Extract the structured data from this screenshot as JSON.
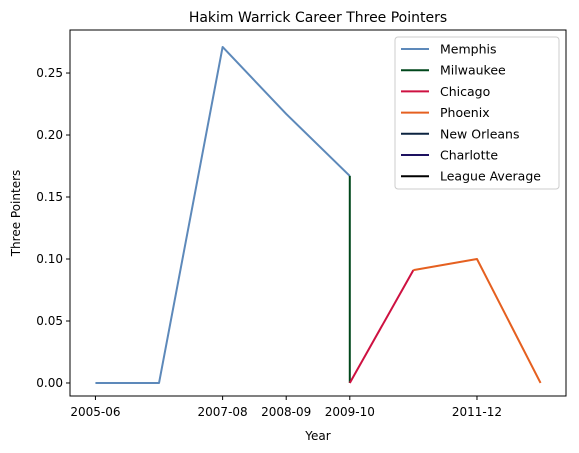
{
  "chart_data": {
    "type": "line",
    "title": "Hakim Warrick Career Three Pointers",
    "xlabel": "Year",
    "ylabel": "Three Pointers",
    "x_tick_labels": [
      {
        "x": 0,
        "label": "2005-06"
      },
      {
        "x": 2,
        "label": "2007-08"
      },
      {
        "x": 3,
        "label": "2008-09"
      },
      {
        "x": 4,
        "label": "2009-10"
      },
      {
        "x": 6,
        "label": "2011-12"
      }
    ],
    "xlim": [
      -0.4,
      7.4
    ],
    "ylim": [
      -0.0105,
      0.2847
    ],
    "y_ticks": [
      0.0,
      0.05,
      0.1,
      0.15,
      0.2,
      0.25
    ],
    "y_tick_labels": [
      "0.00",
      "0.05",
      "0.10",
      "0.15",
      "0.20",
      "0.25"
    ],
    "legend_position": "top-right",
    "series": [
      {
        "name": "Memphis",
        "color": "#5d89ba",
        "points": [
          [
            0,
            0.0
          ],
          [
            1,
            0.0
          ],
          [
            2,
            0.271
          ],
          [
            3,
            0.217
          ],
          [
            4,
            0.167
          ]
        ]
      },
      {
        "name": "Milwaukee",
        "color": "#00471b",
        "points": [
          [
            4,
            0.167
          ],
          [
            4,
            0.0
          ]
        ]
      },
      {
        "name": "Chicago",
        "color": "#ce1141",
        "points": [
          [
            4,
            0.0
          ],
          [
            5,
            0.091
          ]
        ]
      },
      {
        "name": "Phoenix",
        "color": "#e56020",
        "points": [
          [
            5,
            0.091
          ],
          [
            6,
            0.1
          ],
          [
            7,
            0.0
          ]
        ]
      },
      {
        "name": "New Orleans",
        "color": "#0c2340",
        "points": []
      },
      {
        "name": "Charlotte",
        "color": "#1d1160",
        "points": []
      },
      {
        "name": "League Average",
        "color": "#000000",
        "points": []
      }
    ]
  }
}
